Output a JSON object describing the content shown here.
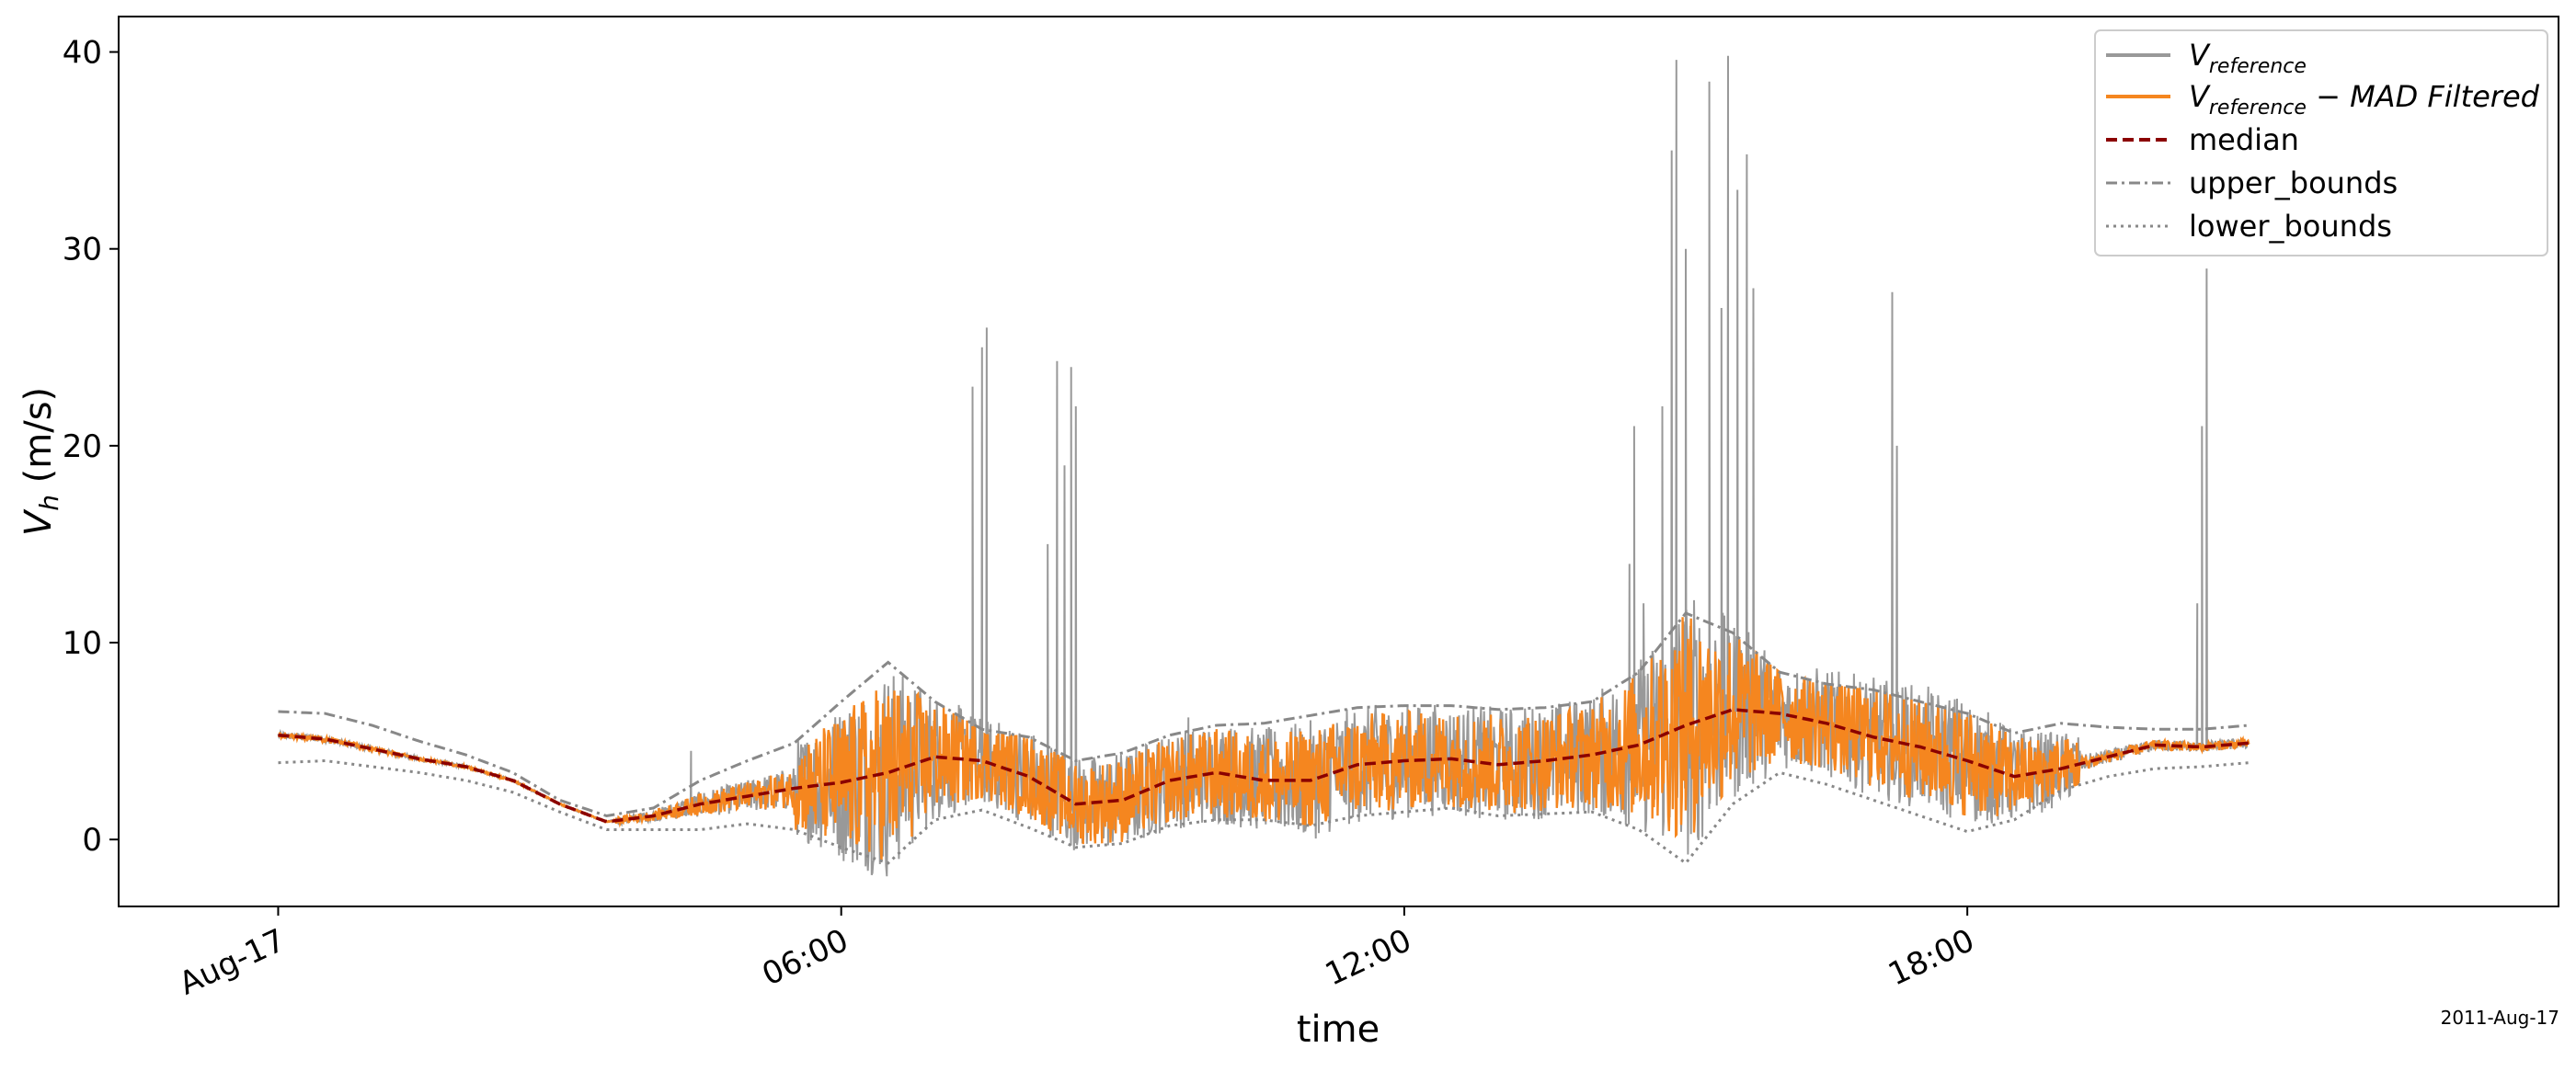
{
  "chart_data": {
    "type": "line",
    "xlabel": "time",
    "ylabel": {
      "base": "V",
      "sub": "h",
      "rest": " (m/s)"
    },
    "date_offset_label": "2011-Aug-17",
    "xlim": [
      -1.7,
      24.3
    ],
    "ylim": [
      -3.4,
      41.8
    ],
    "x_ticks": [
      {
        "value": 0,
        "label": "Aug-17"
      },
      {
        "value": 6,
        "label": "06:00"
      },
      {
        "value": 12,
        "label": "12:00"
      },
      {
        "value": 18,
        "label": "18:00"
      }
    ],
    "y_ticks": [
      {
        "value": 0,
        "label": "0"
      },
      {
        "value": 10,
        "label": "10"
      },
      {
        "value": 20,
        "label": "20"
      },
      {
        "value": 30,
        "label": "30"
      },
      {
        "value": 40,
        "label": "40"
      }
    ],
    "legend_position": "top-right",
    "legend": [
      {
        "key": "reference",
        "base": "V",
        "sub": "reference",
        "suffix": "",
        "color": "#999999",
        "style": "solid"
      },
      {
        "key": "filtered",
        "base": "V",
        "sub": "reference",
        "suffix": " − MAD Filtered",
        "color": "#f5861f",
        "style": "solid"
      },
      {
        "key": "median",
        "text": "median",
        "color": "#8b0000",
        "style": "dashed"
      },
      {
        "key": "upper",
        "text": "upper_bounds",
        "color": "#888888",
        "style": "dashdot"
      },
      {
        "key": "lower",
        "text": "lower_bounds",
        "color": "#888888",
        "style": "dotted"
      }
    ],
    "median": {
      "x": [
        0,
        0.5,
        1,
        1.5,
        2,
        2.5,
        3,
        3.5,
        4,
        4.5,
        5,
        5.5,
        6,
        6.5,
        7,
        7.5,
        8,
        8.5,
        9,
        9.5,
        10,
        10.5,
        11,
        11.5,
        12,
        12.5,
        13,
        13.5,
        14,
        14.5,
        15,
        15.5,
        16,
        16.5,
        17,
        17.5,
        18,
        18.5,
        19,
        19.5,
        20,
        20.5,
        21
      ],
      "y": [
        5.3,
        5.1,
        4.6,
        4.1,
        3.7,
        3.0,
        1.8,
        0.9,
        1.2,
        1.8,
        2.2,
        2.6,
        2.9,
        3.4,
        4.2,
        4.0,
        3.2,
        1.8,
        2.0,
        3.0,
        3.4,
        3.0,
        3.0,
        3.8,
        4.0,
        4.1,
        3.8,
        4.0,
        4.3,
        4.8,
        5.8,
        6.6,
        6.4,
        5.9,
        5.2,
        4.7,
        4.0,
        3.2,
        3.6,
        4.2,
        4.8,
        4.7,
        4.9
      ]
    },
    "upper_bounds": {
      "x": [
        0,
        0.5,
        1,
        1.5,
        2,
        2.5,
        3,
        3.5,
        4,
        4.5,
        5,
        5.5,
        6,
        6.5,
        7,
        7.5,
        8,
        8.5,
        9,
        9.5,
        10,
        10.5,
        11,
        11.5,
        12,
        12.5,
        13,
        13.5,
        14,
        14.5,
        15,
        15.5,
        16,
        16.5,
        17,
        17.5,
        18,
        18.5,
        19,
        19.5,
        20,
        20.5,
        21
      ],
      "y": [
        6.5,
        6.4,
        5.8,
        5.0,
        4.3,
        3.4,
        2.0,
        1.2,
        1.6,
        3.0,
        4.0,
        4.9,
        7.0,
        9.0,
        7.0,
        5.6,
        5.2,
        4.0,
        4.4,
        5.3,
        5.8,
        5.9,
        6.3,
        6.7,
        6.8,
        6.8,
        6.6,
        6.7,
        7.0,
        8.5,
        11.5,
        10.5,
        8.5,
        7.9,
        7.6,
        7.0,
        6.4,
        5.4,
        5.9,
        5.7,
        5.6,
        5.6,
        5.8
      ]
    },
    "lower_bounds": {
      "x": [
        0,
        0.5,
        1,
        1.5,
        2,
        2.5,
        3,
        3.5,
        4,
        4.5,
        5,
        5.5,
        6,
        6.5,
        7,
        7.5,
        8,
        8.5,
        9,
        9.5,
        10,
        10.5,
        11,
        11.5,
        12,
        12.5,
        13,
        13.5,
        14,
        14.5,
        15,
        15.5,
        16,
        16.5,
        17,
        17.5,
        18,
        18.5,
        19,
        19.5,
        20,
        20.5,
        21
      ],
      "y": [
        3.9,
        4.0,
        3.7,
        3.4,
        3.0,
        2.4,
        1.4,
        0.5,
        0.5,
        0.5,
        0.8,
        0.5,
        -0.4,
        -1.2,
        1.0,
        1.5,
        0.6,
        -0.4,
        -0.2,
        0.7,
        1.0,
        1.0,
        0.7,
        1.2,
        1.4,
        1.6,
        1.2,
        1.3,
        1.4,
        0.5,
        -1.2,
        1.8,
        3.4,
        2.8,
        2.0,
        1.2,
        0.4,
        1.0,
        2.5,
        3.2,
        3.6,
        3.7,
        3.9
      ]
    },
    "reference_spikes": [
      {
        "x": 4.4,
        "y": 4.5
      },
      {
        "x": 7.4,
        "y": 23.0
      },
      {
        "x": 7.5,
        "y": 25.0
      },
      {
        "x": 7.55,
        "y": 26.0
      },
      {
        "x": 8.2,
        "y": 15.0
      },
      {
        "x": 8.3,
        "y": 24.3
      },
      {
        "x": 8.38,
        "y": 19.0
      },
      {
        "x": 8.45,
        "y": 24.0
      },
      {
        "x": 8.5,
        "y": 22.0
      },
      {
        "x": 9.7,
        "y": 6.2
      },
      {
        "x": 14.4,
        "y": 14.0
      },
      {
        "x": 14.45,
        "y": 21.0
      },
      {
        "x": 14.55,
        "y": 12.0
      },
      {
        "x": 14.75,
        "y": 22.0
      },
      {
        "x": 14.85,
        "y": 35.0
      },
      {
        "x": 14.9,
        "y": 39.6
      },
      {
        "x": 15.0,
        "y": 30.0
      },
      {
        "x": 15.25,
        "y": 38.5
      },
      {
        "x": 15.38,
        "y": 27.0
      },
      {
        "x": 15.45,
        "y": 39.8
      },
      {
        "x": 15.55,
        "y": 33.0
      },
      {
        "x": 15.65,
        "y": 34.8
      },
      {
        "x": 15.72,
        "y": 28.0
      },
      {
        "x": 17.2,
        "y": 27.8
      },
      {
        "x": 17.25,
        "y": 20.0
      },
      {
        "x": 20.45,
        "y": 12.0
      },
      {
        "x": 20.5,
        "y": 21.0
      },
      {
        "x": 20.55,
        "y": 29.0
      }
    ],
    "colors": {
      "reference": "#999999",
      "filtered": "#f5861f",
      "median": "#8b0000",
      "bounds": "#888888"
    }
  }
}
